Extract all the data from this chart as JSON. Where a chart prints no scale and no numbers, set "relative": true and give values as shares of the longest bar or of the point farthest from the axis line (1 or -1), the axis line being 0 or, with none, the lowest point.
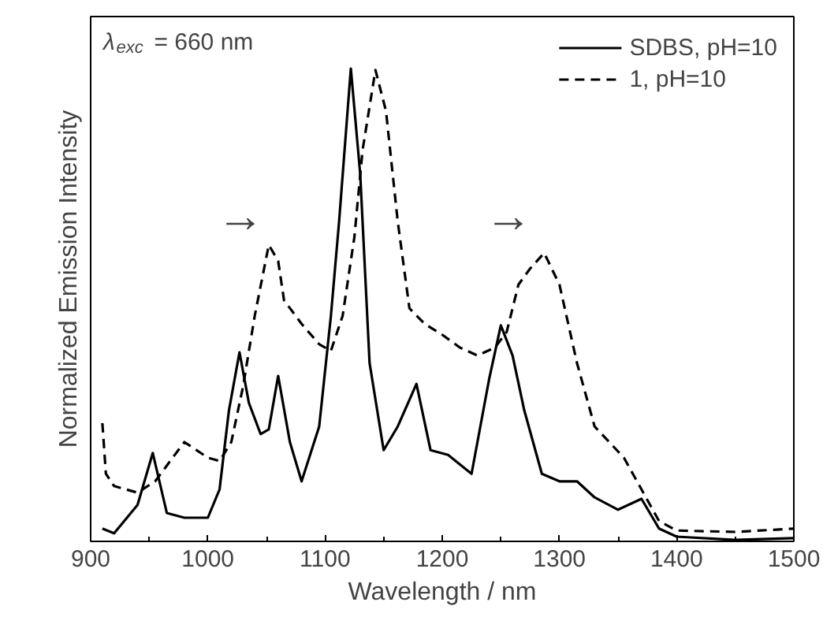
{
  "chart_data": {
    "type": "line",
    "relative": true,
    "xlabel": "Wavelength / nm",
    "ylabel": "Normalized Emission Intensity",
    "xlim": [
      900,
      1500
    ],
    "xticks": [
      900,
      1000,
      1100,
      1200,
      1300,
      1400,
      1500
    ],
    "grid": false,
    "legend": "top right",
    "annotations": [
      "λ$_{exc}$ = 660 nm",
      "→",
      "→"
    ],
    "series": [
      {
        "name": "SDBS, pH=10",
        "color": "#000000",
        "line_style": "solid",
        "x": [
          910,
          920,
          940,
          953,
          965,
          980,
          1000,
          1010,
          1018,
          1027,
          1035,
          1045,
          1052,
          1060,
          1070,
          1080,
          1095,
          1105,
          1112,
          1122,
          1130,
          1138,
          1150,
          1162,
          1178,
          1190,
          1205,
          1225,
          1240,
          1250,
          1260,
          1270,
          1285,
          1300,
          1315,
          1330,
          1350,
          1370,
          1385,
          1400,
          1450,
          1500
        ],
        "values": [
          0.027,
          0.017,
          0.077,
          0.187,
          0.06,
          0.05,
          0.05,
          0.11,
          0.277,
          0.4,
          0.293,
          0.227,
          0.237,
          0.35,
          0.21,
          0.127,
          0.243,
          0.477,
          0.677,
          1.0,
          0.777,
          0.377,
          0.193,
          0.243,
          0.333,
          0.193,
          0.183,
          0.143,
          0.343,
          0.457,
          0.393,
          0.277,
          0.143,
          0.127,
          0.127,
          0.093,
          0.067,
          0.09,
          0.027,
          0.01,
          0.003,
          0.007
        ]
      },
      {
        "name": "1, pH=10",
        "color": "#000000",
        "line_style": "dashed",
        "x": [
          910,
          913,
          920,
          940,
          955,
          970,
          980,
          1000,
          1010,
          1020,
          1030,
          1040,
          1052,
          1060,
          1065,
          1080,
          1095,
          1105,
          1115,
          1125,
          1132,
          1143,
          1152,
          1162,
          1172,
          1185,
          1200,
          1215,
          1230,
          1245,
          1255,
          1265,
          1275,
          1287,
          1300,
          1315,
          1330,
          1355,
          1370,
          1385,
          1400,
          1450,
          1500
        ],
        "values": [
          0.25,
          0.143,
          0.117,
          0.103,
          0.127,
          0.177,
          0.21,
          0.177,
          0.17,
          0.21,
          0.327,
          0.477,
          0.627,
          0.593,
          0.51,
          0.46,
          0.417,
          0.403,
          0.477,
          0.643,
          0.827,
          0.997,
          0.91,
          0.677,
          0.493,
          0.46,
          0.437,
          0.41,
          0.393,
          0.41,
          0.443,
          0.543,
          0.577,
          0.61,
          0.543,
          0.377,
          0.243,
          0.177,
          0.11,
          0.043,
          0.023,
          0.02,
          0.027
        ]
      }
    ]
  }
}
